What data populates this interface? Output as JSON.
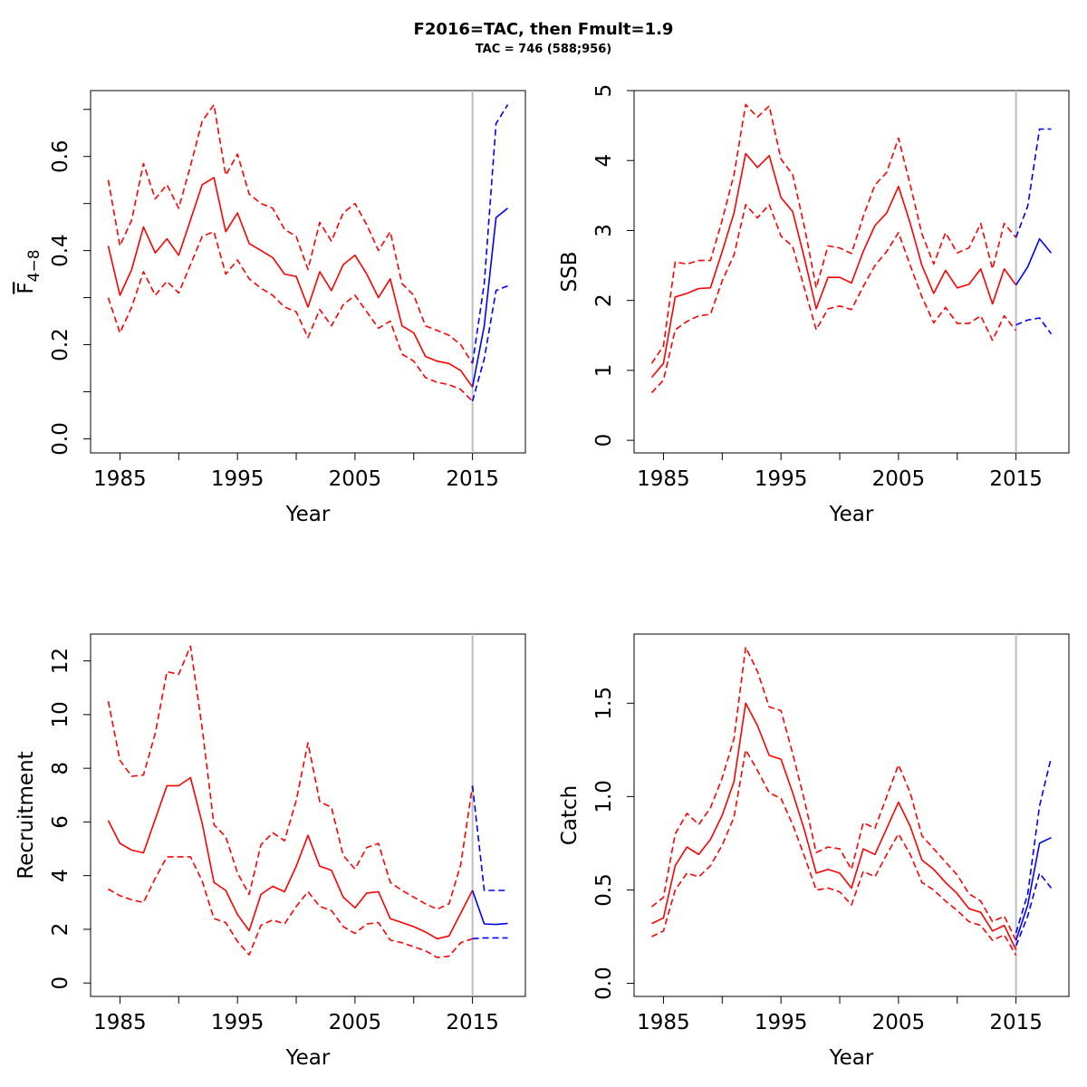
{
  "title": "F2016=TAC, then Fmult=1.9",
  "subtitle": "TAC = 746 (588;956)",
  "colors": {
    "historic": "#ff0000",
    "forecast": "#0000ff",
    "vline": "#bebebe"
  },
  "chart_data": [
    {
      "type": "line",
      "xlabel": "Year",
      "ylabel_base": "F",
      "ylabel_sub": "4−8",
      "xlim": [
        1982.5,
        2019.5
      ],
      "ylim": [
        -0.03,
        0.74
      ],
      "xticks": [
        1985,
        1995,
        2005,
        2015
      ],
      "xminor": [
        1990,
        2000,
        2010
      ],
      "yticks": [
        0.0,
        0.2,
        0.4,
        0.6
      ],
      "yminor": [
        0.1,
        0.3,
        0.5,
        0.7
      ],
      "ytick_labels": [
        "0.0",
        "0.2",
        "0.4",
        "0.6"
      ],
      "vline": 2015,
      "series": [
        {
          "role": "historic",
          "line": "solid",
          "x_start": 1984,
          "values": [
            0.41,
            0.305,
            0.36,
            0.45,
            0.395,
            0.425,
            0.39,
            0.465,
            0.54,
            0.555,
            0.44,
            0.48,
            0.415,
            0.4,
            0.385,
            0.35,
            0.345,
            0.28,
            0.355,
            0.315,
            0.37,
            0.39,
            0.35,
            0.3,
            0.34,
            0.24,
            0.225,
            0.175,
            0.165,
            0.16,
            0.145,
            0.11
          ]
        },
        {
          "role": "historic",
          "line": "dashed",
          "x_start": 1984,
          "values": [
            0.55,
            0.41,
            0.465,
            0.585,
            0.51,
            0.54,
            0.49,
            0.58,
            0.675,
            0.71,
            0.56,
            0.605,
            0.52,
            0.5,
            0.49,
            0.445,
            0.43,
            0.36,
            0.46,
            0.42,
            0.48,
            0.5,
            0.455,
            0.4,
            0.44,
            0.33,
            0.305,
            0.24,
            0.23,
            0.22,
            0.2,
            0.16
          ]
        },
        {
          "role": "historic",
          "line": "dashed",
          "x_start": 1984,
          "values": [
            0.3,
            0.225,
            0.28,
            0.355,
            0.305,
            0.335,
            0.31,
            0.37,
            0.43,
            0.44,
            0.35,
            0.38,
            0.34,
            0.32,
            0.305,
            0.28,
            0.27,
            0.215,
            0.275,
            0.24,
            0.285,
            0.305,
            0.27,
            0.235,
            0.25,
            0.18,
            0.165,
            0.13,
            0.12,
            0.115,
            0.105,
            0.08
          ]
        },
        {
          "role": "forecast",
          "line": "solid",
          "x_start": 2015,
          "values": [
            0.11,
            0.24,
            0.47,
            0.49
          ]
        },
        {
          "role": "forecast",
          "line": "dashed",
          "x_start": 2015,
          "values": [
            0.16,
            0.33,
            0.67,
            0.71
          ]
        },
        {
          "role": "forecast",
          "line": "dashed",
          "x_start": 2015,
          "values": [
            0.08,
            0.17,
            0.315,
            0.325
          ]
        }
      ]
    },
    {
      "type": "line",
      "xlabel": "Year",
      "ylabel": "SSB",
      "xlim": [
        1982.5,
        2019.5
      ],
      "ylim": [
        -0.18,
        5.0
      ],
      "xticks": [
        1985,
        1995,
        2005,
        2015
      ],
      "xminor": [
        1990,
        2000,
        2010
      ],
      "yticks": [
        0,
        1,
        2,
        3,
        4,
        5
      ],
      "yminor": [],
      "ytick_labels": [
        "0",
        "1",
        "2",
        "3",
        "4",
        "5"
      ],
      "vline": 2015,
      "series": [
        {
          "role": "historic",
          "line": "solid",
          "x_start": 1984,
          "values": [
            0.9,
            1.1,
            2.05,
            2.1,
            2.17,
            2.18,
            2.7,
            3.25,
            4.1,
            3.9,
            4.07,
            3.47,
            3.27,
            2.6,
            1.88,
            2.33,
            2.33,
            2.25,
            2.7,
            3.07,
            3.25,
            3.63,
            3.1,
            2.5,
            2.1,
            2.43,
            2.18,
            2.23,
            2.45,
            1.95,
            2.45,
            2.22
          ]
        },
        {
          "role": "historic",
          "line": "dashed",
          "x_start": 1984,
          "values": [
            1.1,
            1.35,
            2.55,
            2.52,
            2.57,
            2.57,
            3.15,
            3.8,
            4.8,
            4.62,
            4.78,
            4.02,
            3.8,
            3.05,
            2.18,
            2.78,
            2.75,
            2.67,
            3.2,
            3.65,
            3.83,
            4.32,
            3.65,
            2.95,
            2.52,
            2.97,
            2.68,
            2.75,
            3.1,
            2.45,
            3.1,
            2.9
          ]
        },
        {
          "role": "historic",
          "line": "dashed",
          "x_start": 1984,
          "values": [
            0.68,
            0.86,
            1.58,
            1.7,
            1.78,
            1.8,
            2.28,
            2.65,
            3.37,
            3.18,
            3.37,
            2.92,
            2.77,
            2.17,
            1.58,
            1.88,
            1.92,
            1.87,
            2.2,
            2.5,
            2.7,
            2.97,
            2.5,
            2.05,
            1.68,
            1.9,
            1.67,
            1.67,
            1.78,
            1.43,
            1.78,
            1.57
          ]
        },
        {
          "role": "forecast",
          "line": "solid",
          "x_start": 2015,
          "values": [
            2.22,
            2.48,
            2.88,
            2.68
          ]
        },
        {
          "role": "forecast",
          "line": "dashed",
          "x_start": 2015,
          "values": [
            2.9,
            3.35,
            4.45,
            4.45
          ]
        },
        {
          "role": "forecast",
          "line": "dashed",
          "x_start": 2015,
          "values": [
            1.65,
            1.72,
            1.75,
            1.52
          ]
        }
      ]
    },
    {
      "type": "line",
      "xlabel": "Year",
      "ylabel": "Recruitment",
      "xlim": [
        1982.5,
        2019.5
      ],
      "ylim": [
        -0.5,
        13.0
      ],
      "xticks": [
        1985,
        1995,
        2005,
        2015
      ],
      "xminor": [
        1990,
        2000,
        2010
      ],
      "yticks": [
        0,
        2,
        4,
        6,
        8,
        10,
        12
      ],
      "yminor": [],
      "ytick_labels": [
        "0",
        "2",
        "4",
        "6",
        "8",
        "10",
        "12"
      ],
      "vline": 2015,
      "series": [
        {
          "role": "historic",
          "line": "solid",
          "x_start": 1984,
          "values": [
            6.05,
            5.2,
            4.95,
            4.85,
            6.1,
            7.35,
            7.35,
            7.65,
            5.95,
            3.75,
            3.45,
            2.55,
            1.95,
            3.3,
            3.6,
            3.4,
            4.35,
            5.5,
            4.35,
            4.2,
            3.2,
            2.8,
            3.35,
            3.4,
            2.4,
            2.25,
            2.1,
            1.9,
            1.65,
            1.75,
            2.6,
            3.45
          ]
        },
        {
          "role": "historic",
          "line": "dashed",
          "x_start": 1984,
          "values": [
            10.5,
            8.3,
            7.7,
            7.75,
            9.3,
            11.6,
            11.5,
            12.55,
            9.5,
            5.9,
            5.45,
            4.1,
            3.3,
            5.15,
            5.6,
            5.3,
            6.8,
            8.95,
            6.75,
            6.55,
            4.75,
            4.25,
            5.05,
            5.2,
            3.75,
            3.45,
            3.2,
            2.95,
            2.75,
            2.95,
            4.4,
            7.35
          ]
        },
        {
          "role": "historic",
          "line": "dashed",
          "x_start": 1984,
          "values": [
            3.5,
            3.25,
            3.1,
            3.0,
            3.9,
            4.7,
            4.7,
            4.7,
            3.8,
            2.4,
            2.25,
            1.55,
            1.05,
            2.15,
            2.35,
            2.2,
            2.85,
            3.4,
            2.85,
            2.7,
            2.1,
            1.85,
            2.2,
            2.25,
            1.6,
            1.5,
            1.35,
            1.2,
            0.95,
            1.0,
            1.5,
            1.65
          ]
        },
        {
          "role": "forecast",
          "line": "solid",
          "x_start": 2015,
          "values": [
            3.45,
            2.2,
            2.18,
            2.22
          ]
        },
        {
          "role": "forecast",
          "line": "dashed",
          "x_start": 2015,
          "values": [
            7.35,
            3.45,
            3.45,
            3.45
          ]
        },
        {
          "role": "forecast",
          "line": "dashed",
          "x_start": 2015,
          "values": [
            1.65,
            1.68,
            1.68,
            1.68
          ]
        }
      ]
    },
    {
      "type": "line",
      "xlabel": "Year",
      "ylabel": "Catch",
      "xlim": [
        1982.5,
        2019.5
      ],
      "ylim": [
        -0.07,
        1.87
      ],
      "xticks": [
        1985,
        1995,
        2005,
        2015
      ],
      "xminor": [
        1990,
        2000,
        2010
      ],
      "yticks": [
        0.0,
        0.5,
        1.0,
        1.5
      ],
      "yminor": [],
      "ytick_labels": [
        "0.0",
        "0.5",
        "1.0",
        "1.5"
      ],
      "vline": 2015,
      "series": [
        {
          "role": "historic",
          "line": "solid",
          "x_start": 1984,
          "values": [
            0.32,
            0.35,
            0.63,
            0.73,
            0.69,
            0.77,
            0.9,
            1.08,
            1.5,
            1.38,
            1.22,
            1.2,
            1.02,
            0.82,
            0.59,
            0.61,
            0.59,
            0.51,
            0.72,
            0.69,
            0.83,
            0.97,
            0.84,
            0.66,
            0.61,
            0.54,
            0.48,
            0.4,
            0.38,
            0.28,
            0.31,
            0.18
          ]
        },
        {
          "role": "historic",
          "line": "dashed",
          "x_start": 1984,
          "values": [
            0.41,
            0.46,
            0.8,
            0.91,
            0.85,
            0.94,
            1.1,
            1.31,
            1.8,
            1.67,
            1.48,
            1.46,
            1.23,
            0.98,
            0.7,
            0.73,
            0.72,
            0.61,
            0.86,
            0.83,
            1.0,
            1.17,
            1.02,
            0.79,
            0.72,
            0.65,
            0.58,
            0.48,
            0.44,
            0.33,
            0.36,
            0.23
          ]
        },
        {
          "role": "historic",
          "line": "dashed",
          "x_start": 1984,
          "values": [
            0.25,
            0.28,
            0.5,
            0.59,
            0.57,
            0.63,
            0.74,
            0.89,
            1.25,
            1.14,
            1.02,
            0.99,
            0.85,
            0.68,
            0.5,
            0.51,
            0.49,
            0.42,
            0.6,
            0.57,
            0.69,
            0.8,
            0.69,
            0.54,
            0.5,
            0.44,
            0.39,
            0.33,
            0.31,
            0.23,
            0.26,
            0.15
          ]
        },
        {
          "role": "forecast",
          "line": "solid",
          "x_start": 2015,
          "values": [
            0.23,
            0.42,
            0.75,
            0.78
          ]
        },
        {
          "role": "forecast",
          "line": "dashed",
          "x_start": 2015,
          "values": [
            0.27,
            0.48,
            0.95,
            1.21
          ]
        },
        {
          "role": "forecast",
          "line": "dashed",
          "x_start": 2015,
          "values": [
            0.2,
            0.36,
            0.59,
            0.51
          ]
        }
      ]
    }
  ]
}
